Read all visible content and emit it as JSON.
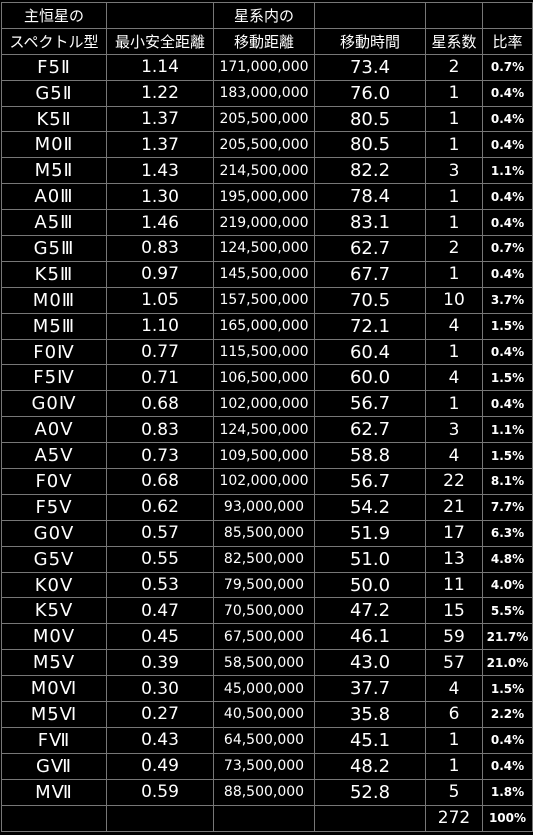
{
  "header": {
    "row1": {
      "c1": "主恒星の",
      "c2": "",
      "c3": "星系内の",
      "c4": "",
      "c5": "",
      "c6": ""
    },
    "row2": {
      "c1": "スペクトル型",
      "c2": "最小安全距離",
      "c3": "移動距離",
      "c4": "移動時間",
      "c5": "星系数",
      "c6": "比率"
    }
  },
  "colors": {
    "white": "#ffffff",
    "yellow": "#ffcc33",
    "magenta": "#ff33ff",
    "cyan": "#33ccdd",
    "green": "#33ff33",
    "yellow2": "#ffff33",
    "grid": "#777777"
  },
  "rows": [
    {
      "type": "F5Ⅱ",
      "min": "1.14",
      "dist": "171,000,000",
      "time": "73.4",
      "count": "2",
      "ratio": "0.7%",
      "tc": "white",
      "vc": "magenta"
    },
    {
      "type": "G5Ⅱ",
      "min": "1.22",
      "dist": "183,000,000",
      "time": "76.0",
      "count": "1",
      "ratio": "0.4%",
      "tc": "yellow",
      "vc": "magenta"
    },
    {
      "type": "K5Ⅱ",
      "min": "1.37",
      "dist": "205,500,000",
      "time": "80.5",
      "count": "1",
      "ratio": "0.4%",
      "tc": "yellow",
      "vc": "magenta"
    },
    {
      "type": "M0Ⅱ",
      "min": "1.37",
      "dist": "205,500,000",
      "time": "80.5",
      "count": "1",
      "ratio": "0.4%",
      "tc": "magenta",
      "vc": "magenta"
    },
    {
      "type": "M5Ⅱ",
      "min": "1.43",
      "dist": "214,500,000",
      "time": "82.2",
      "count": "3",
      "ratio": "1.1%",
      "tc": "magenta",
      "vc": "magenta"
    },
    {
      "type": "A0Ⅲ",
      "min": "1.30",
      "dist": "195,000,000",
      "time": "78.4",
      "count": "1",
      "ratio": "0.4%",
      "tc": "cyan",
      "vc": "magenta"
    },
    {
      "type": "A5Ⅲ",
      "min": "1.46",
      "dist": "219,000,000",
      "time": "83.1",
      "count": "1",
      "ratio": "0.4%",
      "tc": "cyan",
      "vc": "magenta"
    },
    {
      "type": "G5Ⅲ",
      "min": "0.83",
      "dist": "124,500,000",
      "time": "62.7",
      "count": "2",
      "ratio": "0.7%",
      "tc": "yellow",
      "vc": "green"
    },
    {
      "type": "K5Ⅲ",
      "min": "0.97",
      "dist": "145,500,000",
      "time": "67.7",
      "count": "1",
      "ratio": "0.4%",
      "tc": "yellow",
      "vc": "green"
    },
    {
      "type": "M0Ⅲ",
      "min": "1.05",
      "dist": "157,500,000",
      "time": "70.5",
      "count": "10",
      "ratio": "3.7%",
      "tc": "magenta",
      "vc": "green"
    },
    {
      "type": "M5Ⅲ",
      "min": "1.10",
      "dist": "165,000,000",
      "time": "72.1",
      "count": "4",
      "ratio": "1.5%",
      "tc": "magenta",
      "vc": "green"
    },
    {
      "type": "F0Ⅳ",
      "min": "0.77",
      "dist": "115,500,000",
      "time": "60.4",
      "count": "1",
      "ratio": "0.4%",
      "tc": "white",
      "vc": "green"
    },
    {
      "type": "F5Ⅳ",
      "min": "0.71",
      "dist": "106,500,000",
      "time": "60.0",
      "count": "4",
      "ratio": "1.5%",
      "tc": "white",
      "vc": "green"
    },
    {
      "type": "G0Ⅳ",
      "min": "0.68",
      "dist": "102,000,000",
      "time": "56.7",
      "count": "1",
      "ratio": "0.4%",
      "tc": "yellow",
      "vc": "green"
    },
    {
      "type": "A0Ⅴ",
      "min": "0.83",
      "dist": "124,500,000",
      "time": "62.7",
      "count": "3",
      "ratio": "1.1%",
      "tc": "cyan",
      "vc": "green"
    },
    {
      "type": "A5Ⅴ",
      "min": "0.73",
      "dist": "109,500,000",
      "time": "58.8",
      "count": "4",
      "ratio": "1.5%",
      "tc": "cyan",
      "vc": "green"
    },
    {
      "type": "F0Ⅴ",
      "min": "0.68",
      "dist": "102,000,000",
      "time": "56.7",
      "count": "22",
      "ratio": "8.1%",
      "tc": "white",
      "vc": "green"
    },
    {
      "type": "F5Ⅴ",
      "min": "0.62",
      "dist": "93,000,000",
      "time": "54.2",
      "count": "21",
      "ratio": "7.7%",
      "tc": "white",
      "vc": "green"
    },
    {
      "type": "G0Ⅴ",
      "min": "0.57",
      "dist": "85,500,000",
      "time": "51.9",
      "count": "17",
      "ratio": "6.3%",
      "tc": "yellow",
      "vc": "green"
    },
    {
      "type": "G5Ⅴ",
      "min": "0.55",
      "dist": "82,500,000",
      "time": "51.0",
      "count": "13",
      "ratio": "4.8%",
      "tc": "yellow",
      "vc": "green"
    },
    {
      "type": "K0Ⅴ",
      "min": "0.53",
      "dist": "79,500,000",
      "time": "50.0",
      "count": "11",
      "ratio": "4.0%",
      "tc": "yellow",
      "vc": "green"
    },
    {
      "type": "K5Ⅴ",
      "min": "0.47",
      "dist": "70,500,000",
      "time": "47.2",
      "count": "15",
      "ratio": "5.5%",
      "tc": "yellow",
      "vc": "yellow2"
    },
    {
      "type": "M0Ⅴ",
      "min": "0.45",
      "dist": "67,500,000",
      "time": "46.1",
      "count": "59",
      "ratio": "21.7%",
      "tc": "magenta",
      "vc": "yellow2"
    },
    {
      "type": "M5Ⅴ",
      "min": "0.39",
      "dist": "58,500,000",
      "time": "43.0",
      "count": "57",
      "ratio": "21.0%",
      "tc": "magenta",
      "vc": "yellow2"
    },
    {
      "type": "M0Ⅵ",
      "min": "0.30",
      "dist": "45,000,000",
      "time": "37.7",
      "count": "4",
      "ratio": "1.5%",
      "tc": "magenta",
      "vc": "cyan"
    },
    {
      "type": "M5Ⅵ",
      "min": "0.27",
      "dist": "40,500,000",
      "time": "35.8",
      "count": "6",
      "ratio": "2.2%",
      "tc": "magenta",
      "vc": "cyan"
    },
    {
      "type": "FⅦ",
      "min": "0.43",
      "dist": "64,500,000",
      "time": "45.1",
      "count": "1",
      "ratio": "0.4%",
      "tc": "white",
      "vc": "yellow2"
    },
    {
      "type": "GⅦ",
      "min": "0.49",
      "dist": "73,500,000",
      "time": "48.2",
      "count": "1",
      "ratio": "0.4%",
      "tc": "yellow",
      "vc": "yellow2"
    },
    {
      "type": "MⅦ",
      "min": "0.59",
      "dist": "88,500,000",
      "time": "52.8",
      "count": "5",
      "ratio": "1.8%",
      "tc": "magenta",
      "vc": "green"
    }
  ],
  "total": {
    "count": "272",
    "ratio": "100%"
  }
}
